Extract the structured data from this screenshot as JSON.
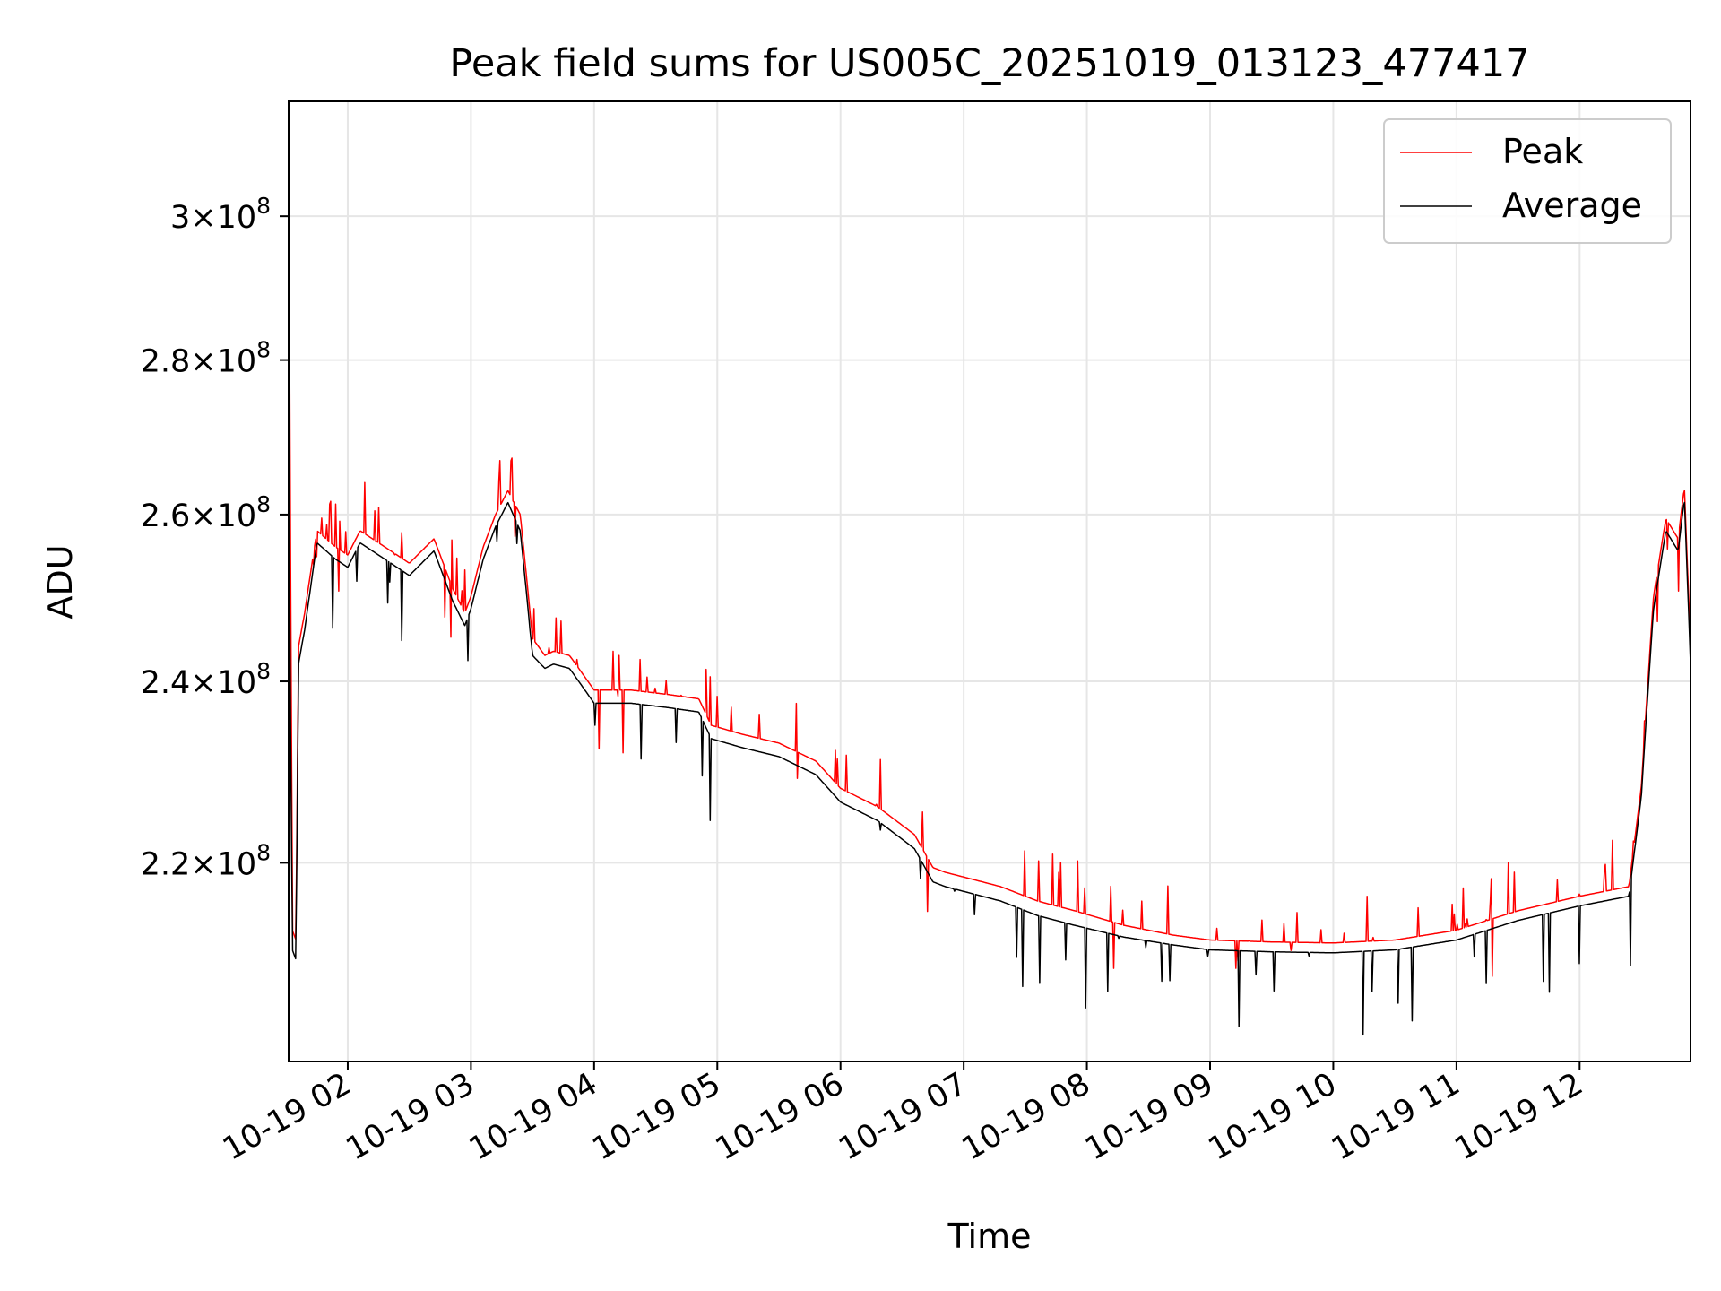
{
  "chart_data": {
    "type": "line",
    "title": "Peak field sums for US005C_20251019_013123_477417",
    "xlabel": "Time",
    "ylabel": "ADU",
    "yscale": "log",
    "ylim": [
      200000000,
      317000000
    ],
    "xlim": [
      1.52,
      12.9
    ],
    "grid": true,
    "legend_position": "top-right",
    "x_ticks": [
      {
        "value": 2,
        "label": "10-19 02"
      },
      {
        "value": 3,
        "label": "10-19 03"
      },
      {
        "value": 4,
        "label": "10-19 04"
      },
      {
        "value": 5,
        "label": "10-19 05"
      },
      {
        "value": 6,
        "label": "10-19 06"
      },
      {
        "value": 7,
        "label": "10-19 07"
      },
      {
        "value": 8,
        "label": "10-19 08"
      },
      {
        "value": 9,
        "label": "10-19 09"
      },
      {
        "value": 10,
        "label": "10-19 10"
      },
      {
        "value": 11,
        "label": "10-19 11"
      },
      {
        "value": 12,
        "label": "10-19 12"
      }
    ],
    "y_ticks": [
      {
        "value": 220000000,
        "mantissa": "2.2",
        "exponent": "8"
      },
      {
        "value": 240000000,
        "mantissa": "2.4",
        "exponent": "8"
      },
      {
        "value": 260000000,
        "mantissa": "2.6",
        "exponent": "8"
      },
      {
        "value": 280000000,
        "mantissa": "2.8",
        "exponent": "8"
      },
      {
        "value": 300000000,
        "mantissa": "3",
        "exponent": "8"
      }
    ],
    "times_label": "×",
    "series": [
      {
        "name": "Peak",
        "color": "#ff0000",
        "x": [
          1.52,
          1.53,
          1.55,
          1.58,
          1.6,
          1.65,
          1.75,
          1.9,
          2.0,
          2.1,
          2.3,
          2.5,
          2.7,
          2.85,
          2.95,
          3.0,
          3.1,
          3.2,
          3.3,
          3.4,
          3.5,
          3.6,
          3.67,
          3.8,
          4.0,
          4.3,
          4.6,
          4.85,
          4.95,
          5.2,
          5.5,
          5.8,
          6.0,
          6.3,
          6.6,
          6.75,
          6.85,
          7.0,
          7.3,
          7.6,
          7.9,
          8.3,
          8.7,
          9.0,
          9.5,
          10.0,
          10.5,
          11.0,
          11.5,
          12.0,
          12.4,
          12.5,
          12.6,
          12.7,
          12.8,
          12.85,
          12.9
        ],
        "values": [
          317000000,
          272000000,
          213000000,
          212000000,
          244000000,
          248000000,
          258000000,
          256000000,
          255000000,
          258000000,
          256000000,
          254000000,
          257000000,
          251000000,
          248000000,
          250000000,
          256000000,
          260000000,
          263000000,
          260000000,
          245000000,
          243000000,
          243500000,
          243000000,
          239000000,
          239000000,
          238500000,
          238000000,
          235000000,
          234000000,
          233000000,
          231000000,
          228000000,
          226000000,
          223000000,
          219500000,
          219000000,
          218500000,
          217500000,
          216000000,
          215000000,
          213500000,
          212500000,
          212000000,
          211800000,
          211700000,
          212000000,
          213000000,
          215000000,
          216500000,
          217500000,
          228000000,
          250000000,
          259500000,
          257000000,
          263500000,
          244000000
        ]
      },
      {
        "name": "Average",
        "color": "#000000",
        "x": [
          1.52,
          1.53,
          1.55,
          1.58,
          1.6,
          1.65,
          1.75,
          1.9,
          2.0,
          2.1,
          2.3,
          2.5,
          2.7,
          2.85,
          2.95,
          3.0,
          3.1,
          3.2,
          3.3,
          3.4,
          3.5,
          3.6,
          3.67,
          3.8,
          4.0,
          4.3,
          4.6,
          4.85,
          4.95,
          5.2,
          5.5,
          5.8,
          6.0,
          6.3,
          6.6,
          6.75,
          6.85,
          7.0,
          7.3,
          7.6,
          7.9,
          8.3,
          8.7,
          9.0,
          9.5,
          10.0,
          10.5,
          11.0,
          11.5,
          12.0,
          12.4,
          12.5,
          12.6,
          12.7,
          12.8,
          12.85,
          12.9
        ],
        "values": [
          276000000,
          245000000,
          211000000,
          210000000,
          242000000,
          246000000,
          256500000,
          254500000,
          253500000,
          256500000,
          254500000,
          252500000,
          255500000,
          249500000,
          246500000,
          248500000,
          254500000,
          258500000,
          261500000,
          258000000,
          243000000,
          241500000,
          242000000,
          241500000,
          237500000,
          237500000,
          237000000,
          236500000,
          233500000,
          232500000,
          231500000,
          229500000,
          226500000,
          224500000,
          221500000,
          218000000,
          217500000,
          217000000,
          216000000,
          214500000,
          213500000,
          212300000,
          211500000,
          211000000,
          210800000,
          210700000,
          211000000,
          212000000,
          214000000,
          215500000,
          216500000,
          227000000,
          248500000,
          258000000,
          255500000,
          262000000,
          242000000
        ]
      }
    ],
    "annotations": "Scattered sharp spikes and dips occur throughout both series"
  }
}
